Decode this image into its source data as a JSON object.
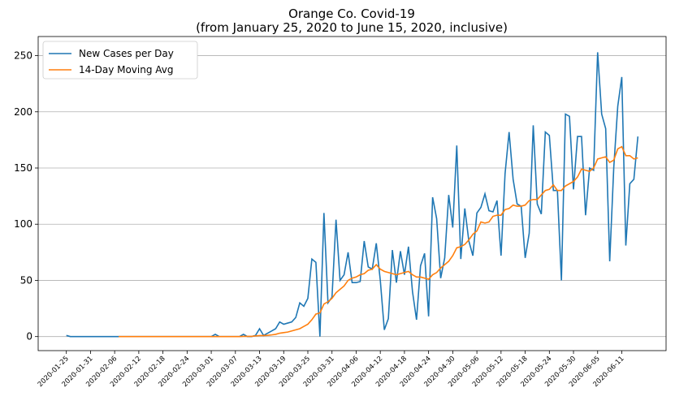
{
  "chart_data": {
    "type": "line",
    "title": "Orange Co. Covid-19",
    "subtitle": "(from January 25, 2020 to June 15, 2020, inclusive)",
    "x": [
      "2020-01-25",
      "2020-01-26",
      "2020-01-27",
      "2020-01-28",
      "2020-01-29",
      "2020-01-30",
      "2020-01-31",
      "2020-02-01",
      "2020-02-02",
      "2020-02-03",
      "2020-02-04",
      "2020-02-05",
      "2020-02-06",
      "2020-02-07",
      "2020-02-08",
      "2020-02-09",
      "2020-02-10",
      "2020-02-11",
      "2020-02-12",
      "2020-02-13",
      "2020-02-14",
      "2020-02-15",
      "2020-02-16",
      "2020-02-17",
      "2020-02-18",
      "2020-02-19",
      "2020-02-20",
      "2020-02-21",
      "2020-02-22",
      "2020-02-23",
      "2020-02-24",
      "2020-02-25",
      "2020-02-26",
      "2020-02-27",
      "2020-02-28",
      "2020-02-29",
      "2020-03-01",
      "2020-03-02",
      "2020-03-03",
      "2020-03-04",
      "2020-03-05",
      "2020-03-06",
      "2020-03-07",
      "2020-03-08",
      "2020-03-09",
      "2020-03-10",
      "2020-03-11",
      "2020-03-12",
      "2020-03-13",
      "2020-03-14",
      "2020-03-15",
      "2020-03-16",
      "2020-03-17",
      "2020-03-18",
      "2020-03-19",
      "2020-03-20",
      "2020-03-21",
      "2020-03-22",
      "2020-03-23",
      "2020-03-24",
      "2020-03-25",
      "2020-03-26",
      "2020-03-27",
      "2020-03-28",
      "2020-03-29",
      "2020-03-30",
      "2020-03-31",
      "2020-04-01",
      "2020-04-02",
      "2020-04-03",
      "2020-04-04",
      "2020-04-05",
      "2020-04-06",
      "2020-04-07",
      "2020-04-08",
      "2020-04-09",
      "2020-04-10",
      "2020-04-11",
      "2020-04-12",
      "2020-04-13",
      "2020-04-14",
      "2020-04-15",
      "2020-04-16",
      "2020-04-17",
      "2020-04-18",
      "2020-04-19",
      "2020-04-20",
      "2020-04-21",
      "2020-04-22",
      "2020-04-23",
      "2020-04-24",
      "2020-04-25",
      "2020-04-26",
      "2020-04-27",
      "2020-04-28",
      "2020-04-29",
      "2020-04-30",
      "2020-05-01",
      "2020-05-02",
      "2020-05-03",
      "2020-05-04",
      "2020-05-05",
      "2020-05-06",
      "2020-05-07",
      "2020-05-08",
      "2020-05-09",
      "2020-05-10",
      "2020-05-11",
      "2020-05-12",
      "2020-05-13",
      "2020-05-14",
      "2020-05-15",
      "2020-05-16",
      "2020-05-17",
      "2020-05-18",
      "2020-05-19",
      "2020-05-20",
      "2020-05-21",
      "2020-05-22",
      "2020-05-23",
      "2020-05-24",
      "2020-05-25",
      "2020-05-26",
      "2020-05-27",
      "2020-05-28",
      "2020-05-29",
      "2020-05-30",
      "2020-05-31",
      "2020-06-01",
      "2020-06-02",
      "2020-06-03",
      "2020-06-04",
      "2020-06-05",
      "2020-06-06",
      "2020-06-07",
      "2020-06-08",
      "2020-06-09",
      "2020-06-10",
      "2020-06-11",
      "2020-06-12",
      "2020-06-13",
      "2020-06-14",
      "2020-06-15"
    ],
    "series": [
      {
        "name": "New Cases per Day",
        "color": "#1f77b4",
        "values": [
          1,
          0,
          0,
          0,
          0,
          0,
          0,
          0,
          0,
          0,
          0,
          0,
          0,
          0,
          0,
          0,
          0,
          0,
          0,
          0,
          0,
          0,
          0,
          0,
          0,
          0,
          0,
          0,
          0,
          0,
          0,
          0,
          0,
          0,
          0,
          0,
          0,
          2,
          0,
          0,
          0,
          0,
          0,
          0,
          2,
          0,
          0,
          1,
          7,
          1,
          3,
          5,
          7,
          13,
          11,
          12,
          13,
          17,
          30,
          27,
          34,
          69,
          66,
          0,
          110,
          30,
          35,
          104,
          50,
          55,
          75,
          48,
          48,
          49,
          85,
          62,
          60,
          83,
          50,
          6,
          16,
          77,
          48,
          76,
          55,
          80,
          40,
          15,
          63,
          74,
          18,
          124,
          105,
          52,
          70,
          126,
          97,
          170,
          69,
          114,
          85,
          72,
          110,
          115,
          127,
          112,
          111,
          121,
          72,
          145,
          182,
          140,
          118,
          116,
          70,
          92,
          188,
          118,
          109,
          182,
          179,
          130,
          130,
          50,
          198,
          196,
          131,
          178,
          178,
          108,
          150,
          148,
          253,
          198,
          185,
          67,
          150,
          205,
          231,
          81,
          136,
          140,
          178
        ]
      },
      {
        "name": "14-Day Moving Avg",
        "color": "#ff7f0e",
        "values": [
          null,
          null,
          null,
          null,
          null,
          null,
          null,
          null,
          null,
          null,
          null,
          null,
          null,
          0,
          0,
          0,
          0,
          0,
          0,
          0,
          0,
          0,
          0,
          0,
          0,
          0,
          0,
          0,
          0,
          0,
          0,
          0,
          0,
          0,
          0,
          0,
          0,
          0,
          0,
          0,
          0,
          0,
          0,
          0,
          0.2,
          0.2,
          0.2,
          0.6,
          0.9,
          0.9,
          1.1,
          1.5,
          2,
          3,
          3.5,
          4,
          5,
          6,
          7,
          9,
          11,
          15,
          20,
          21,
          29,
          31,
          34,
          39,
          42,
          45,
          50,
          52,
          53,
          55,
          56,
          59,
          60,
          64,
          60,
          58,
          57,
          56,
          55,
          56,
          57,
          58,
          55,
          53,
          53,
          52,
          51,
          55,
          57,
          61,
          64,
          67,
          72,
          79,
          80,
          82,
          86,
          91,
          94,
          102,
          101,
          102,
          107,
          108,
          108,
          113,
          114,
          117,
          116,
          116,
          117,
          121,
          122,
          122,
          126,
          130,
          131,
          135,
          130,
          130,
          134,
          136,
          138,
          142,
          149,
          148,
          147,
          150,
          158,
          159,
          160,
          155,
          157,
          167,
          169,
          161,
          161,
          158,
          159
        ]
      }
    ],
    "xlim": [
      "2020-01-18",
      "2020-06-22"
    ],
    "xticks": [
      "2020-01-25",
      "2020-01-31",
      "2020-02-06",
      "2020-02-12",
      "2020-02-18",
      "2020-02-24",
      "2020-03-01",
      "2020-03-07",
      "2020-03-13",
      "2020-03-19",
      "2020-03-25",
      "2020-03-31",
      "2020-04-06",
      "2020-04-12",
      "2020-04-18",
      "2020-04-24",
      "2020-04-30",
      "2020-05-06",
      "2020-05-12",
      "2020-05-18",
      "2020-05-24",
      "2020-05-30",
      "2020-06-05",
      "2020-06-11"
    ],
    "ylim": [
      -12.5,
      267
    ],
    "yticks": [
      0,
      50,
      100,
      150,
      200,
      250
    ],
    "grid": "y",
    "legend": "upper left"
  }
}
